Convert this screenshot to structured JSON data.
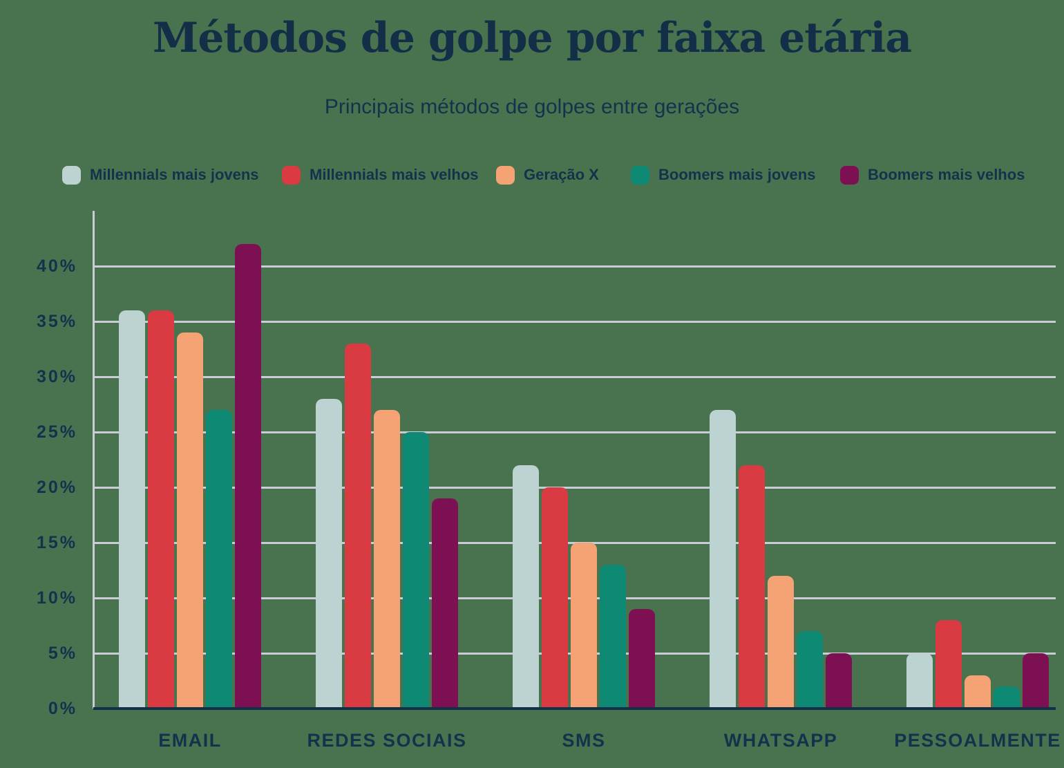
{
  "title": "Métodos de golpe por faixa etária",
  "subtitle": "Principais métodos de golpes entre gerações",
  "colors": {
    "background": "#49734F",
    "text": "#14324C",
    "title_text": "#132F48",
    "gridline": "#C9CED5",
    "axis_baseline": "#13304A"
  },
  "chart_data": {
    "type": "bar",
    "title": "Métodos de golpe por faixa etária",
    "subtitle": "Principais métodos de golpes entre gerações",
    "categories": [
      "EMAIL",
      "REDES SOCIAIS",
      "SMS",
      "WHATSAPP",
      "PESSOALMENTE"
    ],
    "series": [
      {
        "name": "Millennials mais jovens",
        "color": "#BCD3D1",
        "values": [
          36,
          28,
          22,
          27,
          5
        ]
      },
      {
        "name": "Millennials mais velhos",
        "color": "#DA3A41",
        "values": [
          36,
          33,
          20,
          22,
          8
        ]
      },
      {
        "name": "Geração X",
        "color": "#F5A375",
        "values": [
          34,
          27,
          15,
          12,
          3
        ]
      },
      {
        "name": "Boomers mais jovens",
        "color": "#0E8A74",
        "values": [
          27,
          25,
          13,
          7,
          2
        ]
      },
      {
        "name": "Boomers mais velhos",
        "color": "#7D1053",
        "values": [
          42,
          19,
          9,
          5,
          5
        ]
      }
    ],
    "unit": "%",
    "y_ticks": [
      "0%",
      "5%",
      "10%",
      "15%",
      "20%",
      "25%",
      "30%",
      "35%",
      "40%"
    ],
    "ylim": [
      0,
      45
    ],
    "grid": "horizontal",
    "legend_position": "top"
  }
}
